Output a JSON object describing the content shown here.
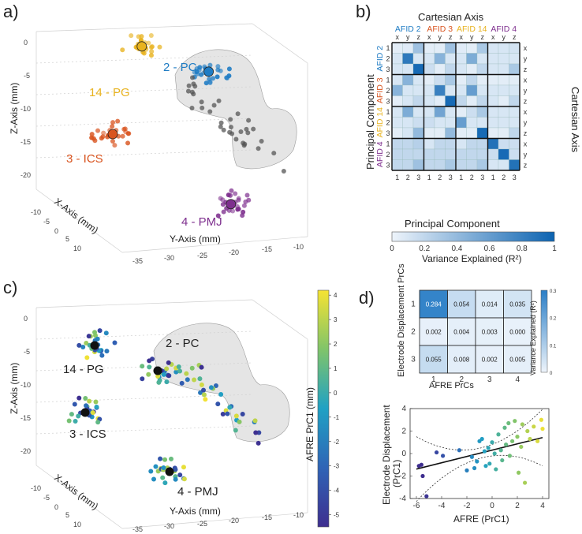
{
  "panel_labels": [
    "a)",
    "b)",
    "c)",
    "d)"
  ],
  "colors": {
    "afid2": "#1f7cc4",
    "afid3": "#d9541f",
    "afid14": "#e8b320",
    "afid4": "#7e2f8e",
    "gray_points": "#555555",
    "heat_low": "#eef4fb",
    "heat_high": "#0c63b1"
  },
  "chart_data": [
    {
      "type": "scatter",
      "panel": "a",
      "projection": "3d",
      "xlabel": "Y-Axis (mm)",
      "ylabel": "X-Axis (mm)",
      "zlabel": "Z-Axis (mm)",
      "y_ticks": [
        "-35",
        "-30",
        "-25",
        "-20",
        "-15",
        "-10"
      ],
      "x_ticks": [
        "-10",
        "-5",
        "0",
        "5",
        "10"
      ],
      "z_ticks": [
        "0",
        "-5",
        "-10",
        "-15",
        "-20"
      ],
      "clusters": [
        {
          "label": "2 - PC",
          "color": "afid2",
          "y": -26,
          "x": 0,
          "z": -7
        },
        {
          "label": "14 - PG",
          "color": "afid14",
          "y": -36,
          "x": -2,
          "z": -4
        },
        {
          "label": "3 - ICS",
          "color": "afid3",
          "y": -36,
          "x": 6,
          "z": -14
        },
        {
          "label": "4 - PMJ",
          "color": "afid4",
          "y": -23,
          "x": 0,
          "z": -27
        }
      ],
      "surface": "ventricle mesh (gray, translucent)"
    },
    {
      "type": "heatmap",
      "panel": "b",
      "title": "Cartesian Axis",
      "xlabel": "Principal Component",
      "ylabel": "Principal Component",
      "right_label": "Cartesian Axis",
      "groups": [
        {
          "name": "AFID 2",
          "color": "afid2"
        },
        {
          "name": "AFID 3",
          "color": "afid3"
        },
        {
          "name": "AFID 14",
          "color": "afid14"
        },
        {
          "name": "AFID 4",
          "color": "afid4"
        }
      ],
      "axis_letters": [
        "x",
        "y",
        "z"
      ],
      "pc_labels": [
        "1",
        "2",
        "3"
      ],
      "colorbar": {
        "label": "Variance Explained (R²)",
        "ticks": [
          "0",
          "0.2",
          "0.4",
          "0.6",
          "0.8",
          "1"
        ],
        "range": [
          0,
          1
        ]
      },
      "matrix": [
        [
          0.05,
          0.06,
          0.35,
          0.05,
          0.05,
          0.35,
          0.06,
          0.05,
          0.3,
          0.1,
          0.1,
          0.12
        ],
        [
          0.1,
          0.85,
          0.1,
          0.1,
          0.45,
          0.1,
          0.1,
          0.5,
          0.1,
          0.1,
          0.1,
          0.1
        ],
        [
          0.1,
          0.1,
          0.95,
          0.15,
          0.05,
          0.2,
          0.1,
          0.05,
          0.2,
          0.1,
          0.1,
          0.3
        ],
        [
          0.1,
          0.45,
          0.1,
          0.05,
          0.15,
          0.3,
          0.05,
          0.2,
          0.05,
          0.05,
          0.05,
          0.05
        ],
        [
          0.45,
          0.1,
          0.1,
          0.1,
          0.8,
          0.1,
          0.1,
          0.6,
          0.1,
          0.1,
          0.1,
          0.1
        ],
        [
          0.05,
          0.1,
          0.2,
          0.1,
          0.05,
          0.95,
          0.2,
          0.05,
          0.2,
          0.1,
          0.05,
          0.2
        ],
        [
          0.1,
          0.5,
          0.1,
          0.1,
          0.55,
          0.1,
          0.05,
          0.15,
          0.3,
          0.1,
          0.1,
          0.1
        ],
        [
          0.1,
          0.1,
          0.15,
          0.15,
          0.1,
          0.1,
          0.6,
          0.1,
          0.1,
          0.1,
          0.1,
          0.1
        ],
        [
          0.05,
          0.1,
          0.4,
          0.05,
          0.05,
          0.4,
          0.05,
          0.05,
          0.95,
          0.05,
          0.05,
          0.2
        ],
        [
          0.2,
          0.2,
          0.25,
          0.1,
          0.2,
          0.2,
          0.1,
          0.2,
          0.2,
          0.9,
          0.15,
          0.15
        ],
        [
          0.2,
          0.2,
          0.2,
          0.2,
          0.2,
          0.2,
          0.2,
          0.2,
          0.2,
          0.15,
          0.95,
          0.15
        ],
        [
          0.2,
          0.2,
          0.35,
          0.2,
          0.2,
          0.3,
          0.2,
          0.2,
          0.3,
          0.1,
          0.1,
          0.9
        ]
      ]
    },
    {
      "type": "scatter",
      "panel": "c",
      "projection": "3d",
      "xlabel": "Y-Axis (mm)",
      "ylabel": "X-Axis (mm)",
      "zlabel": "Z-Axis (mm)",
      "y_ticks": [
        "-35",
        "-30",
        "-25",
        "-20",
        "-15",
        "-10"
      ],
      "x_ticks": [
        "-10",
        "-5",
        "0",
        "5",
        "10"
      ],
      "z_ticks": [
        "0",
        "-5",
        "-10",
        "-15",
        "-20"
      ],
      "cluster_labels": [
        "2 - PC",
        "14 - PG",
        "3 - ICS",
        "4 - PMJ"
      ],
      "colorbar": {
        "label": "AFRE PrC1 (mm)",
        "ticks": [
          "4",
          "3",
          "2",
          "1",
          "0",
          "-1",
          "-2",
          "-3",
          "-4",
          "-5"
        ],
        "range": [
          -5.5,
          4.2
        ]
      }
    },
    {
      "type": "heatmap",
      "panel": "d-top",
      "xlabel": "AFRE PrCs",
      "ylabel": "Electrode Displacement PrCs",
      "x_categories": [
        "1",
        "2",
        "3",
        "4"
      ],
      "y_categories": [
        "1",
        "2",
        "3"
      ],
      "values": [
        [
          "0.284",
          "0.054",
          "0.014",
          "0.035"
        ],
        [
          "0.002",
          "0.004",
          "0.003",
          "0.000"
        ],
        [
          "0.055",
          "0.008",
          "0.002",
          "0.005"
        ]
      ],
      "colorbar": {
        "label": "Variance Explained (R²)",
        "ticks": [
          "0.3",
          "0.2",
          "0.1",
          "0"
        ],
        "range": [
          0,
          0.3
        ]
      }
    },
    {
      "type": "scatter",
      "panel": "d-bottom",
      "xlabel": "AFRE (PrC1)",
      "ylabel": "Electrode Displacement (PrC1)",
      "xlim": [
        -6.5,
        4.5
      ],
      "ylim": [
        -4,
        4
      ],
      "x_ticks": [
        "-6",
        "-4",
        "-2",
        "0",
        "2",
        "4"
      ],
      "y_ticks": [
        "4",
        "2",
        "0",
        "-2",
        "-4"
      ],
      "fit_line": {
        "slope": 0.28,
        "intercept": 0.3
      },
      "points": [
        {
          "x": -5.8,
          "y": -1.1
        },
        {
          "x": -5.6,
          "y": -1.0
        },
        {
          "x": -5.5,
          "y": -2.0
        },
        {
          "x": -5.2,
          "y": -3.8
        },
        {
          "x": -4.4,
          "y": 0.1
        },
        {
          "x": -3.9,
          "y": -0.2
        },
        {
          "x": -2.6,
          "y": 0.3
        },
        {
          "x": -2.0,
          "y": -1.5
        },
        {
          "x": -1.6,
          "y": -0.3
        },
        {
          "x": -1.4,
          "y": -1.3
        },
        {
          "x": -1.2,
          "y": -0.7
        },
        {
          "x": -1.0,
          "y": 1.1
        },
        {
          "x": -0.8,
          "y": 1.3
        },
        {
          "x": -0.6,
          "y": 0.2
        },
        {
          "x": -0.5,
          "y": -1.1
        },
        {
          "x": -0.3,
          "y": 0.5
        },
        {
          "x": -0.2,
          "y": -0.9
        },
        {
          "x": 0.0,
          "y": 1.0
        },
        {
          "x": 0.2,
          "y": 0.0
        },
        {
          "x": 0.3,
          "y": -1.4
        },
        {
          "x": 0.5,
          "y": 1.7
        },
        {
          "x": 0.7,
          "y": 0.3
        },
        {
          "x": 0.8,
          "y": -0.6
        },
        {
          "x": 1.0,
          "y": 2.3
        },
        {
          "x": 1.1,
          "y": 0.8
        },
        {
          "x": 1.3,
          "y": 2.7
        },
        {
          "x": 1.4,
          "y": -0.2
        },
        {
          "x": 1.6,
          "y": 1.1
        },
        {
          "x": 1.8,
          "y": 2.9
        },
        {
          "x": 2.0,
          "y": 1.5
        },
        {
          "x": 2.1,
          "y": -1.7
        },
        {
          "x": 2.3,
          "y": 0.6
        },
        {
          "x": 2.4,
          "y": 2.6
        },
        {
          "x": 2.6,
          "y": -2.6
        },
        {
          "x": 2.8,
          "y": 2.0
        },
        {
          "x": 3.0,
          "y": 1.3
        },
        {
          "x": 3.3,
          "y": 2.4
        },
        {
          "x": 3.6,
          "y": 1.1
        },
        {
          "x": 3.9,
          "y": 3.0
        },
        {
          "x": 4.0,
          "y": 2.2
        }
      ]
    }
  ]
}
